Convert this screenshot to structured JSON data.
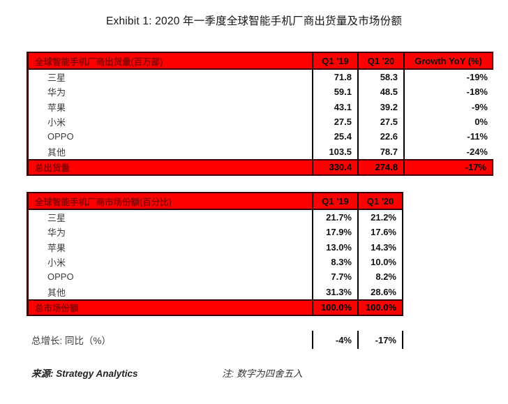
{
  "page": {
    "title": "Exhibit 1:  2020 年一季度全球智能手机厂商出货量及市场份额"
  },
  "shipments_table": {
    "title": "全球智能手机厂商出货量(百万部)",
    "col_q1_19": "Q1 '19",
    "col_q1_20": "Q1 '20",
    "col_growth": "Growth YoY (%)",
    "rows": [
      {
        "vendor": "三星",
        "q1_19": "71.8",
        "q1_20": "58.3",
        "growth": "-19%"
      },
      {
        "vendor": "华为",
        "q1_19": "59.1",
        "q1_20": "48.5",
        "growth": "-18%"
      },
      {
        "vendor": "苹果",
        "q1_19": "43.1",
        "q1_20": "39.2",
        "growth": "-9%"
      },
      {
        "vendor": "小米",
        "q1_19": "27.5",
        "q1_20": "27.5",
        "growth": "0%"
      },
      {
        "vendor": "OPPO",
        "q1_19": "25.4",
        "q1_20": "22.6",
        "growth": "-11%"
      },
      {
        "vendor": "其他",
        "q1_19": "103.5",
        "q1_20": "78.7",
        "growth": "-24%"
      }
    ],
    "total": {
      "label": "总出货量",
      "q1_19": "330.4",
      "q1_20": "274.8",
      "growth": "-17%"
    }
  },
  "share_table": {
    "title": "全球智能手机厂商市场份额(百分比)",
    "col_q1_19": "Q1 '19",
    "col_q1_20": "Q1 '20",
    "rows": [
      {
        "vendor": "三星",
        "q1_19": "21.7%",
        "q1_20": "21.2%"
      },
      {
        "vendor": "华为",
        "q1_19": "17.9%",
        "q1_20": "17.6%"
      },
      {
        "vendor": "苹果",
        "q1_19": "13.0%",
        "q1_20": "14.3%"
      },
      {
        "vendor": "小米",
        "q1_19": "8.3%",
        "q1_20": "10.0%"
      },
      {
        "vendor": "OPPO",
        "q1_19": "7.7%",
        "q1_20": "8.2%"
      },
      {
        "vendor": "其他",
        "q1_19": "31.3%",
        "q1_20": "28.6%"
      }
    ],
    "total": {
      "label": "总市场份额",
      "q1_19": "100.0%",
      "q1_20": "100.0%"
    }
  },
  "growth_summary": {
    "label": "总增长: 同比（%）",
    "q1_19": "-4%",
    "q1_20": "-17%"
  },
  "footer": {
    "source": "来源: Strategy Analytics",
    "note": "注: 数字为四舍五入"
  },
  "colors": {
    "header_red": "#fe0000",
    "dark_red_text": "#8b0000",
    "border_dark": "#380000",
    "separator_black": "#000000"
  }
}
